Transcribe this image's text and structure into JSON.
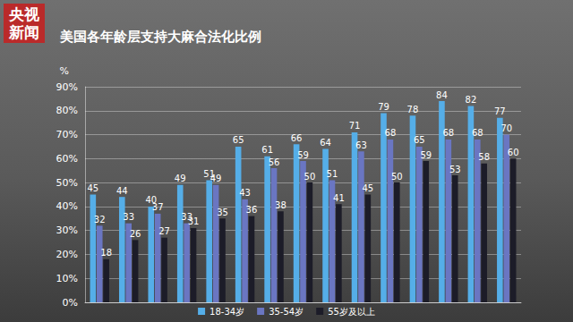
{
  "logo": [
    "央视",
    "新闻"
  ],
  "chart_data": {
    "type": "bar",
    "title": "美国各年龄层支持大麻合法化比例",
    "y_label": "%",
    "categories": [
      null,
      null,
      null,
      null,
      null,
      null,
      null,
      null,
      null,
      null,
      null,
      null,
      null,
      null,
      null
    ],
    "series": [
      {
        "name": "18-34岁",
        "color": "#55aee8",
        "values": [
          45,
          44,
          40,
          49,
          51,
          65,
          61,
          66,
          64,
          71,
          79,
          78,
          84,
          82,
          77
        ]
      },
      {
        "name": "35-54岁",
        "color": "#6a76c2",
        "values": [
          32,
          33,
          37,
          33,
          49,
          43,
          56,
          59,
          51,
          63,
          68,
          65,
          68,
          68,
          70
        ]
      },
      {
        "name": "55岁及以上",
        "color": "#1c1c28",
        "values": [
          18,
          26,
          27,
          31,
          35,
          36,
          38,
          50,
          41,
          45,
          50,
          59,
          53,
          58,
          60
        ]
      }
    ],
    "ylim": [
      0,
      90
    ],
    "yticks": [
      {
        "value": 0,
        "label": "0%"
      },
      {
        "value": 10,
        "label": "10%"
      },
      {
        "value": 20,
        "label": "20%"
      },
      {
        "value": 30,
        "label": "30%"
      },
      {
        "value": 40,
        "label": "40%"
      },
      {
        "value": 50,
        "label": "50%"
      },
      {
        "value": 60,
        "label": "60%"
      },
      {
        "value": 70,
        "label": "70%"
      },
      {
        "value": 80,
        "label": "80%"
      },
      {
        "value": 90,
        "label": "90%"
      }
    ],
    "grid": true,
    "legend": "bottom",
    "data_labels": true,
    "tick_labels": "y"
  }
}
